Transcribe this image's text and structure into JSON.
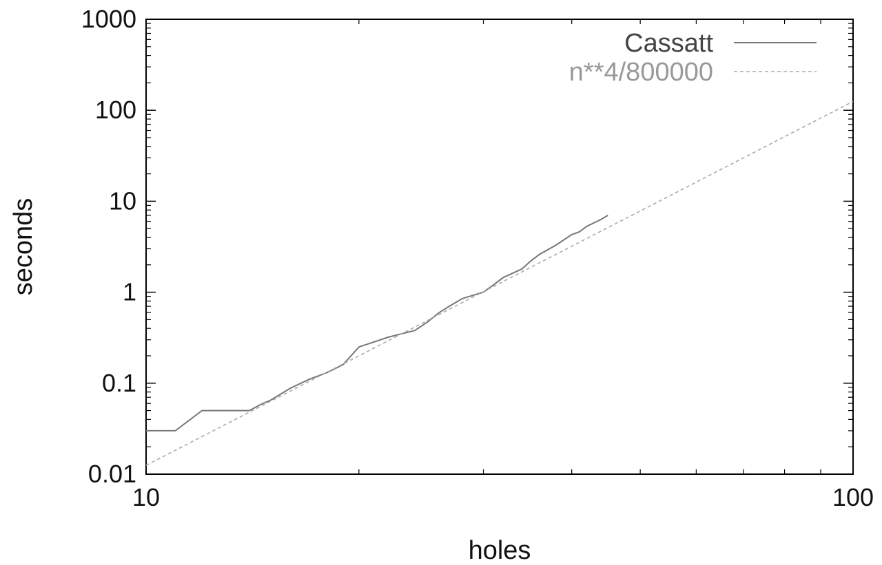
{
  "chart_data": {
    "type": "line",
    "title": "",
    "xlabel": "holes",
    "ylabel": "seconds",
    "x_scale": "log",
    "y_scale": "log",
    "xlim": [
      10,
      100
    ],
    "ylim": [
      0.01,
      1000
    ],
    "x_ticks": [
      10,
      100
    ],
    "y_ticks": [
      0.01,
      0.1,
      1,
      10,
      100,
      1000
    ],
    "x_tick_labels": [
      "10",
      "100"
    ],
    "y_tick_labels": [
      "0.01",
      "0.1",
      "1",
      "10",
      "100",
      "1000"
    ],
    "grid": false,
    "legend_position": "top-right",
    "series": [
      {
        "name": "Cassatt",
        "color": "#777777",
        "style": "solid",
        "x": [
          10,
          11,
          12,
          14,
          14.5,
          15,
          16,
          17,
          18,
          19,
          20,
          22,
          24,
          25,
          26,
          27,
          28,
          30,
          31,
          32,
          34,
          35,
          36,
          38,
          40,
          41,
          42,
          44,
          45
        ],
        "y": [
          0.03,
          0.03,
          0.05,
          0.05,
          0.058,
          0.065,
          0.088,
          0.11,
          0.13,
          0.16,
          0.25,
          0.32,
          0.38,
          0.47,
          0.6,
          0.72,
          0.85,
          1.0,
          1.2,
          1.45,
          1.8,
          2.2,
          2.6,
          3.3,
          4.3,
          4.6,
          5.3,
          6.3,
          7.0
        ]
      },
      {
        "name": "n**4/800000",
        "color": "#aaaaaa",
        "style": "dashed",
        "function": "n**4/800000",
        "x": [
          10,
          20,
          30,
          40,
          50,
          60,
          70,
          80,
          90,
          100
        ],
        "y": [
          0.0125,
          0.2,
          1.0125,
          3.2,
          7.8125,
          16.2,
          30.0125,
          51.2,
          82.0125,
          125
        ]
      }
    ]
  }
}
